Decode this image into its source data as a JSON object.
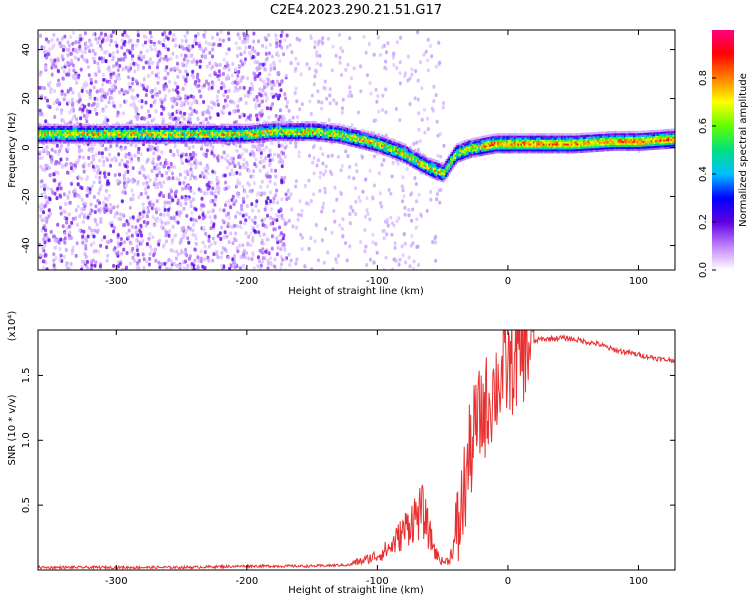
{
  "chart_data": [
    {
      "type": "heatmap",
      "title": "C2E4.2023.290.21.51.G17",
      "xlabel": "Height of straight line (km)",
      "ylabel": "Frequency (Hz)",
      "xlim": [
        -360,
        128
      ],
      "ylim": [
        -50,
        48
      ],
      "xticks": [
        -300,
        -200,
        -100,
        0,
        100
      ],
      "yticks": [
        -40,
        -20,
        0,
        20,
        40
      ],
      "colorbar": {
        "label": "Normalized spectral amplitude",
        "range": [
          0,
          1
        ],
        "ticks": [
          "0.0",
          "0.2",
          "0.4",
          "0.6",
          "0.8"
        ],
        "colors": [
          "#ffffff",
          "#c080ff",
          "#6000e0",
          "#0000ff",
          "#00c0ff",
          "#00e080",
          "#60ff00",
          "#ffff00",
          "#ff8000",
          "#ff0000",
          "#ff0080"
        ]
      },
      "ridge": {
        "x": [
          -355,
          -300,
          -250,
          -200,
          -180,
          -150,
          -130,
          -115,
          -100,
          -90,
          -80,
          -70,
          -60,
          -50,
          -40,
          -30,
          -20,
          -10,
          0,
          20,
          50,
          80,
          100,
          128
        ],
        "y": [
          6,
          6,
          6,
          6,
          7,
          7,
          6,
          4,
          2,
          0,
          -2,
          -5,
          -8,
          -10,
          -2,
          0,
          1,
          2,
          2,
          2,
          2,
          3,
          3,
          4
        ]
      }
    },
    {
      "type": "line",
      "xlabel": "Height of straight line (km)",
      "ylabel": "SNR (10 * v/v)",
      "y_multiplier": "(x10⁴)",
      "xlim": [
        -360,
        128
      ],
      "ylim": [
        0,
        1.85
      ],
      "xticks": [
        -300,
        -200,
        -100,
        0,
        100
      ],
      "yticks": [
        "0.5",
        "1.0",
        "1.5"
      ],
      "series": [
        {
          "color": "#e83030",
          "x": [
            -360,
            -300,
            -250,
            -200,
            -150,
            -120,
            -110,
            -100,
            -90,
            -80,
            -75,
            -70,
            -65,
            -60,
            -55,
            -50,
            -45,
            -40,
            -35,
            -30,
            -25,
            -20,
            -15,
            -10,
            -5,
            0,
            5,
            10,
            15,
            20,
            25,
            30,
            40,
            50,
            60,
            70,
            80,
            90,
            100,
            110,
            120,
            128
          ],
          "y": [
            0.02,
            0.02,
            0.02,
            0.03,
            0.03,
            0.04,
            0.06,
            0.09,
            0.14,
            0.24,
            0.3,
            0.34,
            0.36,
            0.22,
            0.1,
            0.05,
            0.06,
            0.2,
            0.5,
            0.85,
            1.1,
            1.2,
            1.3,
            1.4,
            1.5,
            1.55,
            1.6,
            1.66,
            1.72,
            1.76,
            1.78,
            1.78,
            1.79,
            1.78,
            1.76,
            1.74,
            1.7,
            1.68,
            1.66,
            1.64,
            1.62,
            1.62
          ]
        }
      ]
    }
  ]
}
